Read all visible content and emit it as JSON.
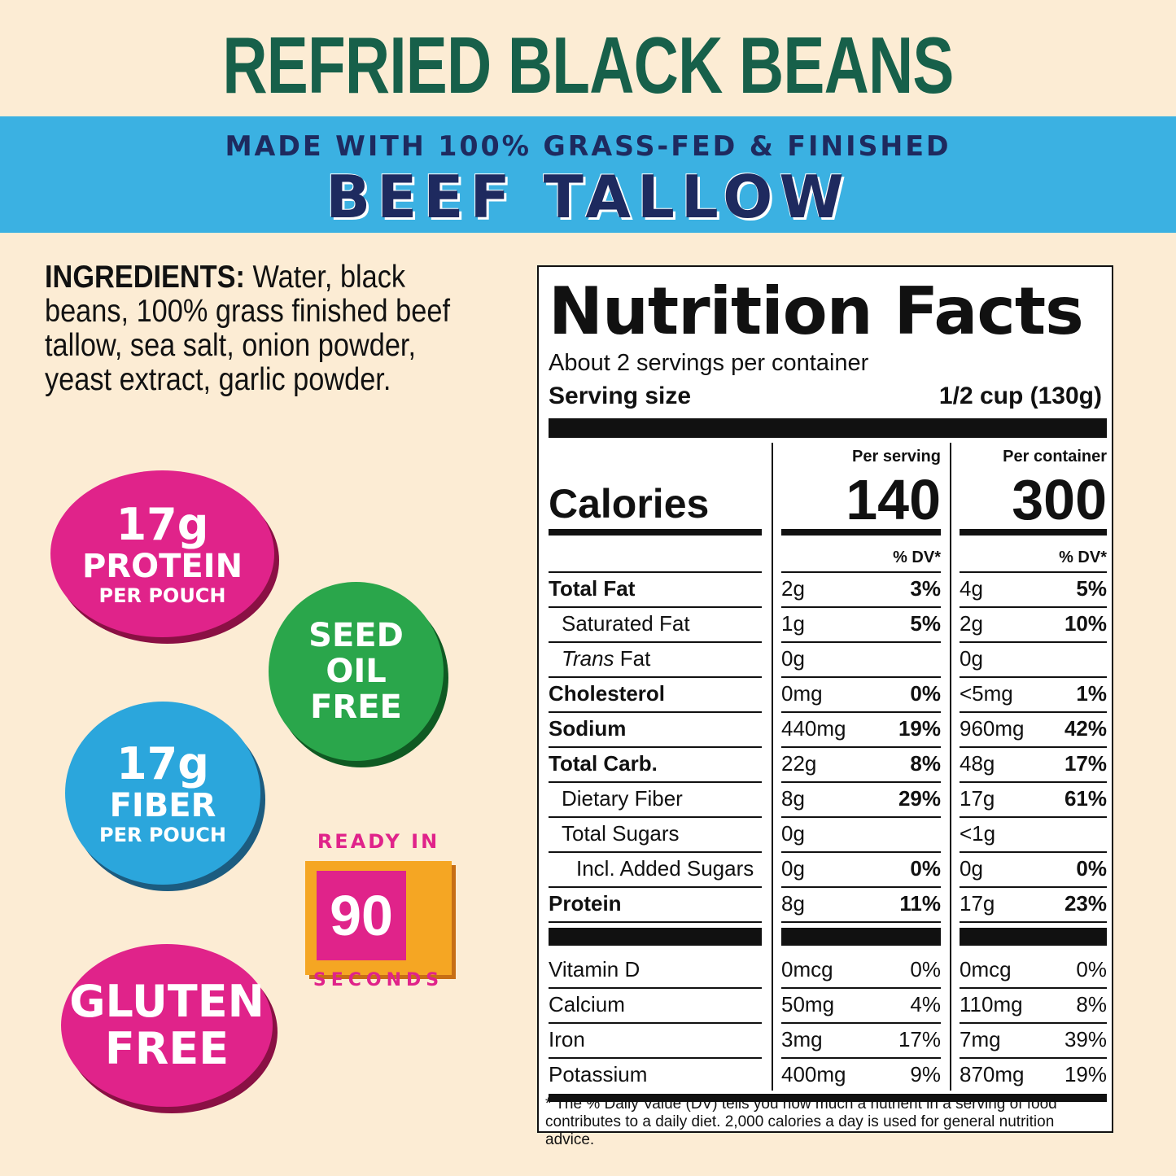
{
  "title": "REFRIED BLACK BEANS",
  "banner": {
    "line1": "MADE WITH 100% GRASS-FED & FINISHED",
    "line2": "BEEF TALLOW"
  },
  "ingredients": {
    "label": "INGREDIENTS:",
    "text": "Water, black beans, 100% grass finished beef tallow, sea salt, onion powder, yeast extract, garlic powder."
  },
  "badges": {
    "protein": {
      "amount": "17g",
      "label": "PROTEIN",
      "sub": "PER POUCH"
    },
    "seed_oil": {
      "line1": "SEED",
      "line2": "OIL",
      "line3": "FREE"
    },
    "fiber": {
      "amount": "17g",
      "label": "FIBER",
      "sub": "PER POUCH"
    },
    "ready": {
      "top": "READY IN",
      "number": "90",
      "bottom": "SECONDS"
    },
    "gluten": {
      "line1": "GLUTEN",
      "line2": "FREE"
    }
  },
  "nutrition": {
    "heading": "Nutrition Facts",
    "servings": "About 2 servings per container",
    "serving_size_label": "Serving size",
    "serving_size_value": "1/2 cup (130g)",
    "per_serving": "Per serving",
    "per_container": "Per container",
    "calories_label": "Calories",
    "calories_serving": "140",
    "calories_container": "300",
    "dv_header": "% DV*",
    "rows": [
      {
        "name": "Total Fat",
        "s_amt": "2g",
        "s_dv": "3%",
        "c_amt": "4g",
        "c_dv": "5%"
      },
      {
        "name": "Saturated Fat",
        "s_amt": "1g",
        "s_dv": "5%",
        "c_amt": "2g",
        "c_dv": "10%"
      },
      {
        "name": "Trans",
        "name2": " Fat",
        "s_amt": "0g",
        "s_dv": "",
        "c_amt": "0g",
        "c_dv": ""
      },
      {
        "name": "Cholesterol",
        "s_amt": "0mg",
        "s_dv": "0%",
        "c_amt": "<5mg",
        "c_dv": "1%"
      },
      {
        "name": "Sodium",
        "s_amt": "440mg",
        "s_dv": "19%",
        "c_amt": "960mg",
        "c_dv": "42%"
      },
      {
        "name": "Total Carb.",
        "s_amt": "22g",
        "s_dv": "8%",
        "c_amt": "48g",
        "c_dv": "17%"
      },
      {
        "name": "Dietary Fiber",
        "s_amt": "8g",
        "s_dv": "29%",
        "c_amt": "17g",
        "c_dv": "61%"
      },
      {
        "name": "Total Sugars",
        "s_amt": "0g",
        "s_dv": "",
        "c_amt": "<1g",
        "c_dv": ""
      },
      {
        "name": "Incl. Added Sugars",
        "s_amt": "0g",
        "s_dv": "0%",
        "c_amt": "0g",
        "c_dv": "0%"
      },
      {
        "name": "Protein",
        "s_amt": "8g",
        "s_dv": "11%",
        "c_amt": "17g",
        "c_dv": "23%"
      }
    ],
    "vitamins": [
      {
        "name": "Vitamin D",
        "s_amt": "0mcg",
        "s_dv": "0%",
        "c_amt": "0mcg",
        "c_dv": "0%"
      },
      {
        "name": "Calcium",
        "s_amt": "50mg",
        "s_dv": "4%",
        "c_amt": "110mg",
        "c_dv": "8%"
      },
      {
        "name": "Iron",
        "s_amt": "3mg",
        "s_dv": "17%",
        "c_amt": "7mg",
        "c_dv": "39%"
      },
      {
        "name": "Potassium",
        "s_amt": "400mg",
        "s_dv": "9%",
        "c_amt": "870mg",
        "c_dv": "19%"
      }
    ],
    "footnote": "* The % Daily Value (DV) tells you how much a nutrient in a serving of food contributes to a daily diet. 2,000 calories a day is used for general nutrition advice."
  }
}
